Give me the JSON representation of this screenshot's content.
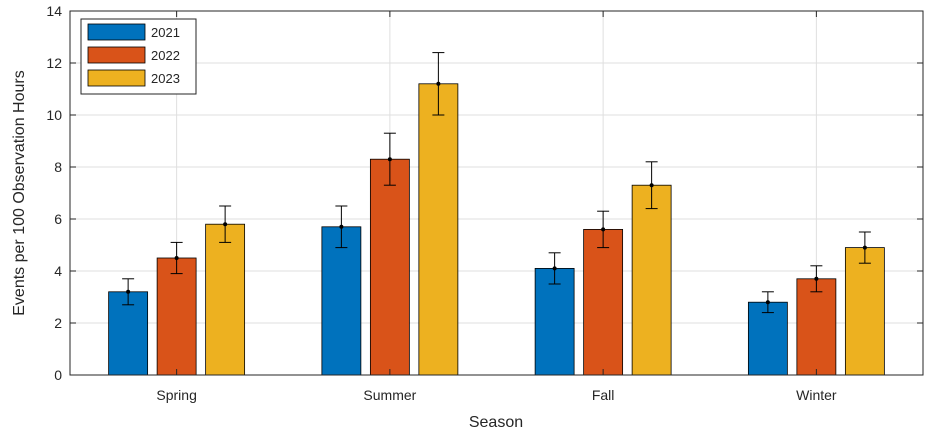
{
  "chart_data": {
    "type": "bar",
    "title": "",
    "xlabel": "Season",
    "ylabel": "Events per 100 Observation Hours",
    "categories": [
      "Spring",
      "Summer",
      "Fall",
      "Winter"
    ],
    "ylim": [
      0,
      14
    ],
    "yticks": [
      0,
      2,
      4,
      6,
      8,
      10,
      12,
      14
    ],
    "grid": true,
    "legend_position": "top-left",
    "series": [
      {
        "name": "2021",
        "color": "#0072BD",
        "values": [
          3.2,
          5.7,
          4.1,
          2.8
        ],
        "errors": [
          0.5,
          0.8,
          0.6,
          0.4
        ]
      },
      {
        "name": "2022",
        "color": "#D95319",
        "values": [
          4.5,
          8.3,
          5.6,
          3.7
        ],
        "errors": [
          0.6,
          1.0,
          0.7,
          0.5
        ]
      },
      {
        "name": "2023",
        "color": "#EDB120",
        "values": [
          5.8,
          11.2,
          7.3,
          4.9
        ],
        "errors": [
          0.7,
          1.2,
          0.9,
          0.6
        ]
      }
    ]
  }
}
